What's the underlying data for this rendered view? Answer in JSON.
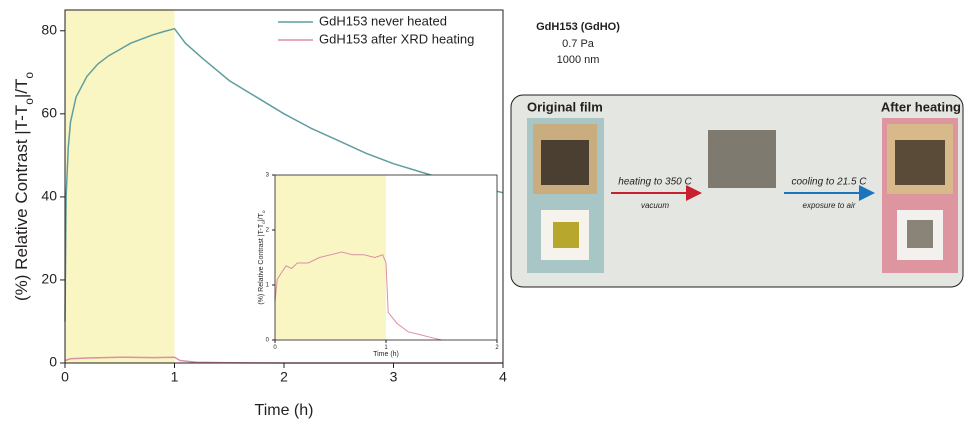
{
  "chart_data": [
    {
      "type": "line",
      "x_label": "Time (h)",
      "y_label": [
        "(%) Relative Contrast |T-T",
        "o",
        "|/T",
        "o"
      ],
      "xlim": [
        0,
        4
      ],
      "xticks": [
        0,
        1,
        2,
        3,
        4
      ],
      "ylim": [
        0,
        85
      ],
      "yticks": [
        0,
        20,
        40,
        60,
        80
      ],
      "shaded": [
        0,
        1
      ],
      "shade_color": "#faf6c3",
      "legend": "upper right",
      "series": [
        {
          "name": "GdH153 never heated",
          "color": "#5f9e9f",
          "x": [
            0,
            0.01,
            0.03,
            0.05,
            0.1,
            0.2,
            0.3,
            0.4,
            0.5,
            0.6,
            0.7,
            0.8,
            0.9,
            1.0,
            1.1,
            1.25,
            1.5,
            1.75,
            2,
            2.25,
            2.5,
            2.75,
            3,
            3.25,
            3.5,
            3.75,
            4
          ],
          "values": [
            10,
            40,
            52,
            58,
            64,
            69,
            72,
            74,
            75.5,
            77,
            78,
            79,
            79.8,
            80.5,
            77,
            73.5,
            68,
            64,
            60,
            56.5,
            53.5,
            50.5,
            48,
            46,
            44,
            42.5,
            41
          ]
        },
        {
          "name": "GdH153 after XRD heating",
          "color": "#dd8fa3",
          "x": [
            0,
            0.05,
            0.2,
            0.5,
            0.8,
            1.0,
            1.05,
            1.2,
            1.5,
            2,
            3,
            4
          ],
          "values": [
            0.6,
            1.0,
            1.2,
            1.4,
            1.3,
            1.4,
            0.6,
            0.2,
            0.05,
            0,
            0,
            0
          ]
        }
      ]
    },
    {
      "type": "line",
      "x_label": "Time (h)",
      "y_label": [
        "(%) Relative Contrast |T-T",
        "o",
        "|/T",
        "o"
      ],
      "xlim": [
        0,
        2
      ],
      "xticks": [
        0,
        1,
        2
      ],
      "ylim": [
        0,
        3
      ],
      "yticks": [
        0,
        1,
        2,
        3
      ],
      "shaded": [
        0,
        1
      ],
      "shade_color": "#faf6c3",
      "series": [
        {
          "color": "#dd8fa3",
          "x": [
            0,
            0.02,
            0.05,
            0.1,
            0.15,
            0.2,
            0.3,
            0.4,
            0.5,
            0.6,
            0.7,
            0.8,
            0.9,
            0.97,
            1.0,
            1.02,
            1.1,
            1.2,
            1.3,
            1.4,
            1.5
          ],
          "values": [
            0.7,
            1.1,
            1.2,
            1.35,
            1.3,
            1.4,
            1.4,
            1.5,
            1.55,
            1.6,
            1.55,
            1.55,
            1.5,
            1.55,
            1.4,
            0.5,
            0.3,
            0.15,
            0.1,
            0.05,
            0
          ]
        }
      ]
    }
  ],
  "sample": {
    "name": "GdH153 (GdHO)",
    "pressure": "0.7 Pa",
    "thickness": "1000 nm"
  },
  "diagram": {
    "left_label": "Original film",
    "right_label": "After heating",
    "step1": {
      "label": "heating to 350 C",
      "sub": "vacuum"
    },
    "step2": {
      "label": "cooling to 21.5 C",
      "sub": "exposure to air"
    }
  }
}
